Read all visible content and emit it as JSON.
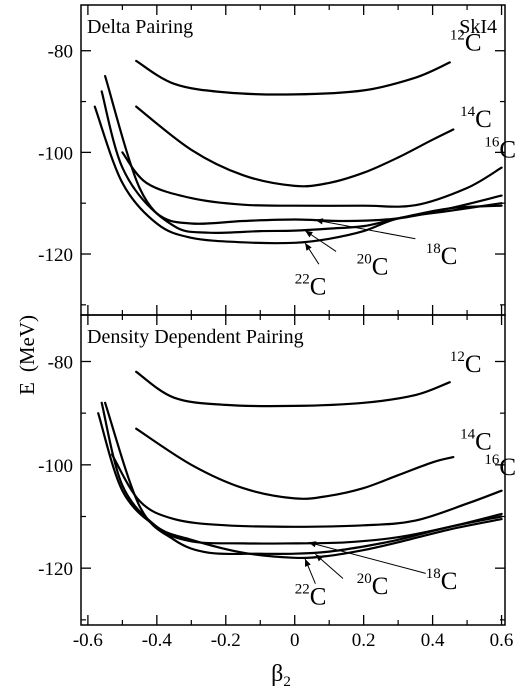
{
  "chart_data": [
    {
      "type": "line",
      "title": "Delta Pairing",
      "annotation": "SkI4",
      "xlim": [
        -0.62,
        0.61
      ],
      "ylim": [
        -132,
        -71
      ],
      "xticks": [
        -0.6,
        -0.4,
        -0.2,
        0,
        0.2,
        0.4,
        0.6
      ],
      "yticks": [
        -80,
        -100,
        -120
      ],
      "series": [
        {
          "name": "12C",
          "label_mass": "12",
          "label_elem": "C",
          "label_x": 0.45,
          "label_y": -80,
          "x": [
            -0.46,
            -0.35,
            -0.2,
            0,
            0.2,
            0.35,
            0.45
          ],
          "y": [
            -82,
            -86.5,
            -88.2,
            -88.6,
            -87.8,
            -85.3,
            -82.3
          ]
        },
        {
          "name": "14C",
          "label_mass": "14",
          "label_elem": "C",
          "label_x": 0.48,
          "label_y": -95,
          "x": [
            -0.46,
            -0.3,
            -0.15,
            0,
            0.1,
            0.2,
            0.3,
            0.4,
            0.46
          ],
          "y": [
            -91,
            -99.5,
            -104.5,
            -106.6,
            -106,
            -104,
            -101,
            -97.5,
            -95.5
          ]
        },
        {
          "name": "16C",
          "label_mass": "16",
          "label_elem": "C",
          "label_x": 0.55,
          "label_y": -101,
          "x": [
            -0.5,
            -0.43,
            -0.3,
            -0.15,
            0,
            0.2,
            0.35,
            0.5,
            0.6
          ],
          "y": [
            -100,
            -106,
            -109,
            -110.3,
            -110.5,
            -110.5,
            -110.4,
            -107,
            -103
          ]
        },
        {
          "name": "18C",
          "label_mass": "18",
          "label_elem": "C",
          "label_x": 0.38,
          "label_y": -122,
          "x": [
            -0.56,
            -0.5,
            -0.4,
            -0.3,
            -0.15,
            0,
            0.15,
            0.3,
            0.45,
            0.6
          ],
          "y": [
            -88,
            -103,
            -112,
            -114,
            -113.5,
            -113.2,
            -113.5,
            -113,
            -111,
            -108.5
          ]
        },
        {
          "name": "20C",
          "label_mass": "20",
          "label_elem": "C",
          "label_x": 0.18,
          "label_y": -124,
          "x": [
            -0.55,
            -0.45,
            -0.35,
            -0.25,
            -0.1,
            0,
            0.1,
            0.2,
            0.3,
            0.45,
            0.6
          ],
          "y": [
            -85,
            -107,
            -114.5,
            -115.8,
            -115.5,
            -115.4,
            -115,
            -114.5,
            -113,
            -111,
            -110.5
          ]
        },
        {
          "name": "22C",
          "label_mass": "22",
          "label_elem": "C",
          "label_x": 0.0,
          "label_y": -128,
          "x": [
            -0.58,
            -0.5,
            -0.4,
            -0.3,
            -0.15,
            0,
            0.1,
            0.2,
            0.3,
            0.45,
            0.6
          ],
          "y": [
            -91,
            -106,
            -114,
            -116.8,
            -117.7,
            -117.8,
            -117,
            -115.5,
            -113,
            -111.5,
            -110
          ]
        }
      ],
      "arrows": [
        {
          "from": [
            0.35,
            -117
          ],
          "to": [
            0.06,
            -113.3
          ]
        },
        {
          "from": [
            0.12,
            -119.5
          ],
          "to": [
            0.03,
            -115.4
          ]
        },
        {
          "from": [
            0.07,
            -122
          ],
          "to": [
            0.03,
            -117.8
          ]
        }
      ]
    },
    {
      "type": "line",
      "title": "Density Dependent Pairing",
      "xlim": [
        -0.62,
        0.61
      ],
      "ylim": [
        -131,
        -71
      ],
      "xticks": [
        -0.6,
        -0.4,
        -0.2,
        0,
        0.2,
        0.4,
        0.6
      ],
      "yticks": [
        -80,
        -100,
        -120
      ],
      "series": [
        {
          "name": "12C",
          "label_mass": "12",
          "label_elem": "C",
          "label_x": 0.45,
          "label_y": -82,
          "x": [
            -0.46,
            -0.35,
            -0.2,
            0,
            0.2,
            0.35,
            0.45
          ],
          "y": [
            -82,
            -87,
            -88.4,
            -88.6,
            -88,
            -86.5,
            -84
          ]
        },
        {
          "name": "14C",
          "label_mass": "14",
          "label_elem": "C",
          "label_x": 0.48,
          "label_y": -97,
          "x": [
            -0.46,
            -0.3,
            -0.15,
            0,
            0.1,
            0.2,
            0.3,
            0.4,
            0.46
          ],
          "y": [
            -93,
            -100,
            -104.5,
            -106.5,
            -106,
            -104.5,
            -102,
            -99.5,
            -98.5
          ]
        },
        {
          "name": "16C",
          "label_mass": "16",
          "label_elem": "C",
          "label_x": 0.55,
          "label_y": -102,
          "x": [
            -0.53,
            -0.45,
            -0.35,
            -0.2,
            0,
            0.2,
            0.35,
            0.5,
            0.6
          ],
          "y": [
            -98,
            -107,
            -110.5,
            -111.7,
            -112,
            -111.7,
            -110.8,
            -107.5,
            -105
          ]
        },
        {
          "name": "18C",
          "label_mass": "18",
          "label_elem": "C",
          "label_x": 0.38,
          "label_y": -124,
          "x": [
            -0.56,
            -0.5,
            -0.4,
            -0.3,
            -0.15,
            0,
            0.15,
            0.3,
            0.45,
            0.6
          ],
          "y": [
            -88,
            -104,
            -112,
            -114.8,
            -115.2,
            -115.2,
            -115,
            -114,
            -112,
            -109.5
          ]
        },
        {
          "name": "20C",
          "label_mass": "20",
          "label_elem": "C",
          "label_x": 0.18,
          "label_y": -125,
          "x": [
            -0.55,
            -0.45,
            -0.35,
            -0.25,
            -0.1,
            0,
            0.1,
            0.2,
            0.3,
            0.45,
            0.6
          ],
          "y": [
            -88,
            -108,
            -114.5,
            -117,
            -117.2,
            -117.2,
            -116.8,
            -115.8,
            -114.5,
            -112,
            -110
          ]
        },
        {
          "name": "22C",
          "label_mass": "22",
          "label_elem": "C",
          "label_x": 0.0,
          "label_y": -127,
          "x": [
            -0.57,
            -0.5,
            -0.4,
            -0.3,
            -0.15,
            0,
            0.1,
            0.2,
            0.3,
            0.45,
            0.6
          ],
          "y": [
            -90,
            -105,
            -112,
            -114.5,
            -117,
            -118,
            -117.6,
            -116.5,
            -115,
            -112.5,
            -110.5
          ]
        }
      ],
      "arrows": [
        {
          "from": [
            0.38,
            -121
          ],
          "to": [
            0.04,
            -115
          ]
        },
        {
          "from": [
            0.14,
            -122
          ],
          "to": [
            0.06,
            -117.3
          ]
        },
        {
          "from": [
            0.06,
            -123
          ],
          "to": [
            0.03,
            -118.2
          ]
        }
      ]
    }
  ],
  "axes": {
    "ylabel": "E",
    "ylabel_unit": "(MeV)",
    "xlabel": "β",
    "xlabel_sub": "2"
  }
}
